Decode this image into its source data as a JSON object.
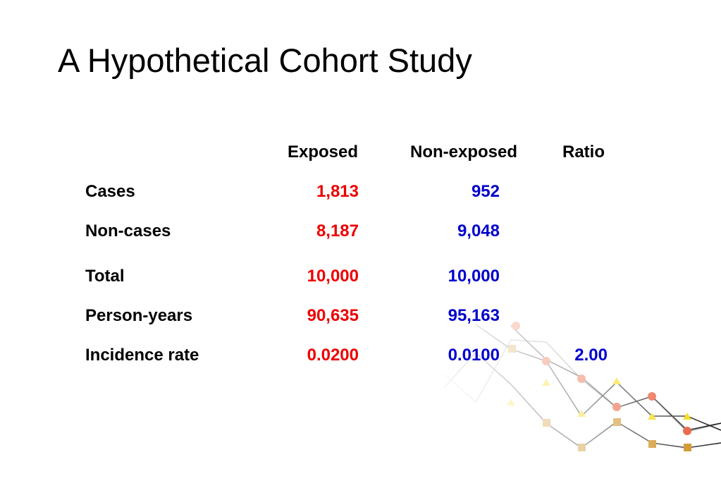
{
  "title": "A Hypothetical Cohort Study",
  "columns": {
    "exposed": "Exposed",
    "non_exposed": "Non-exposed",
    "ratio": "Ratio"
  },
  "rows": {
    "cases": {
      "label": "Cases",
      "exposed": "1,813",
      "non_exposed": "952"
    },
    "non_cases": {
      "label": "Non-cases",
      "exposed": "8,187",
      "non_exposed": "9,048"
    },
    "total": {
      "label": "Total",
      "exposed": "10,000",
      "non_exposed": "10,000"
    },
    "person_years": {
      "label": "Person-years",
      "exposed": "90,635",
      "non_exposed": "95,163"
    },
    "incidence_rate": {
      "label": "Incidence rate",
      "exposed": "0.0200",
      "non_exposed": "0.0100",
      "ratio": "2.00"
    }
  },
  "colors": {
    "exposed": "#ee0000",
    "non_exposed": "#0000cc",
    "deco_circle": "#e8532f",
    "deco_triangle": "#f5d800",
    "deco_square": "#cc8a14"
  }
}
